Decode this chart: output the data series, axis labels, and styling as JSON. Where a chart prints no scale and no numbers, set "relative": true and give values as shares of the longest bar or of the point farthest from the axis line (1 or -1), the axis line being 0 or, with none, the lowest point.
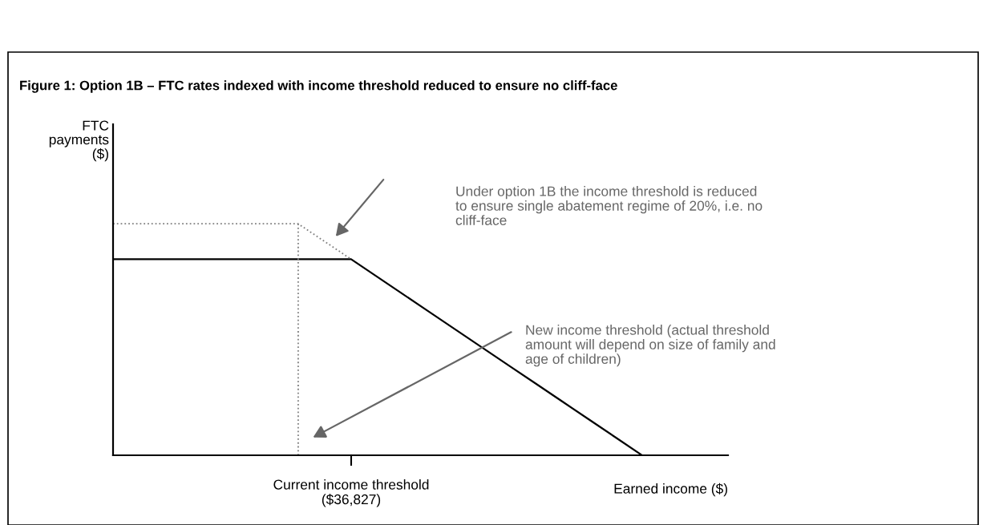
{
  "chart_data": {
    "type": "line",
    "relative": true,
    "title": "Figure 1: Option 1B – FTC rates indexed with income threshold reduced to ensure no cliff-face",
    "ylabel": "FTC\npayments\n($)",
    "xlabel": "Earned income ($)",
    "categories": [
      null,
      null,
      null,
      null,
      null,
      null,
      null,
      null,
      null,
      null,
      null,
      null,
      null,
      null,
      null,
      null,
      null,
      null,
      null,
      null,
      null,
      null,
      null,
      null
    ],
    "series": [
      {
        "color": "#000000",
        "line_style": "solid",
        "values": [
          0.847,
          0.847,
          0.847,
          0.847,
          0.847,
          0.847,
          0.847,
          0.847,
          0.847,
          0.847,
          0.77,
          0.693,
          0.616,
          0.539,
          0.462,
          0.385,
          0.308,
          0.231,
          0.154,
          0.077,
          0,
          null,
          null,
          null
        ]
      },
      {
        "color": "#808080",
        "line_style": "dotted",
        "values": [
          1,
          1,
          1,
          1,
          1,
          1,
          1,
          1,
          0.9235,
          0.847,
          null,
          null,
          null,
          null,
          null,
          null,
          null,
          null,
          null,
          null,
          null,
          null,
          null,
          null
        ]
      }
    ],
    "annotations": [
      "Under option 1B the income threshold is reduced\nto ensure single abatement regime of 20%, i.e. no\ncliff-face",
      "New income threshold (actual threshold\namount will depend on size of family and\nage of children)",
      "Current income threshold\n($36,827)"
    ]
  }
}
